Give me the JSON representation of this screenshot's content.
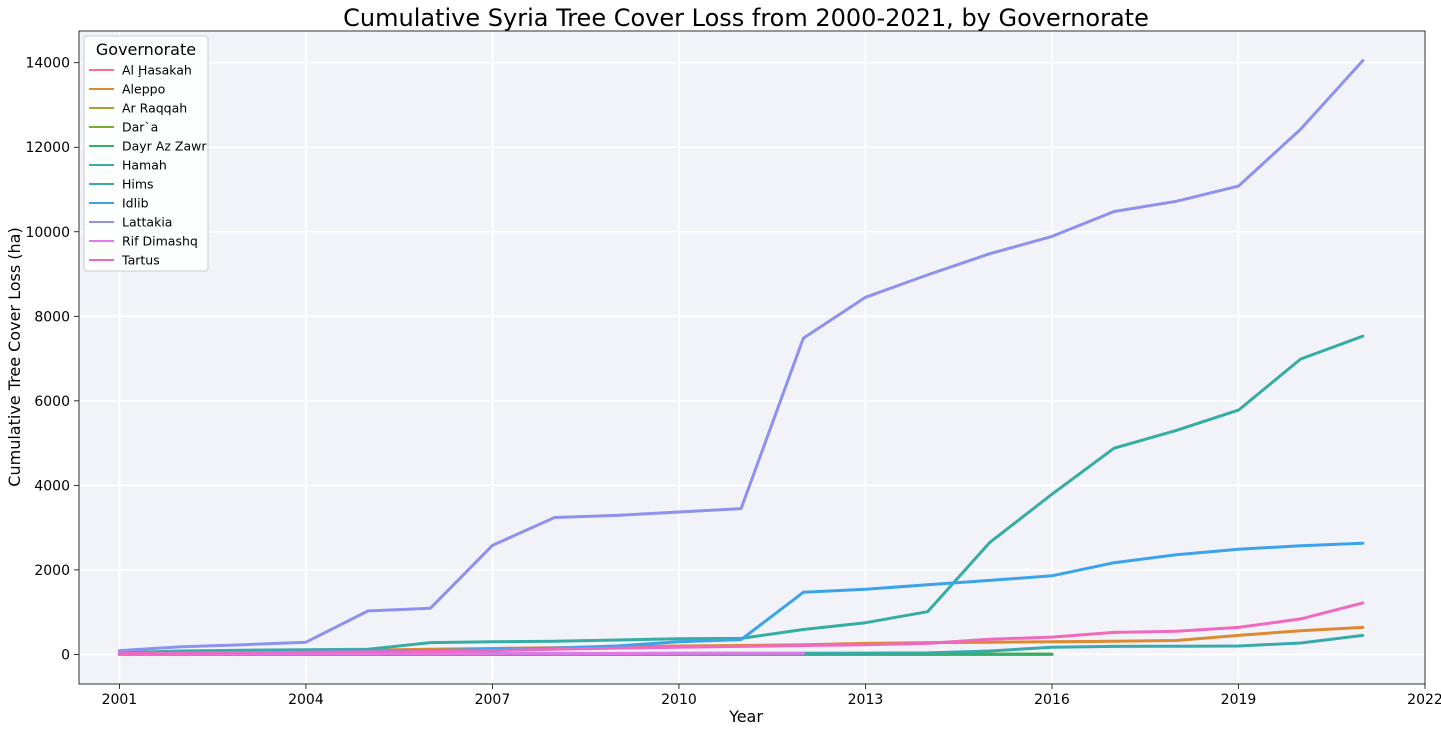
{
  "chart_data": {
    "type": "line",
    "title": "Cumulative Syria Tree Cover Loss from 2000-2021, by Governorate",
    "xlabel": "Year",
    "ylabel": "Cumulative Tree Cover Loss (ha)",
    "xlim": [
      2000.35,
      2022
    ],
    "ylim": [
      -700,
      14750
    ],
    "xticks": [
      2001,
      2004,
      2007,
      2010,
      2013,
      2016,
      2019,
      2022
    ],
    "yticks": [
      0,
      2000,
      4000,
      6000,
      8000,
      10000,
      12000,
      14000
    ],
    "grid": true,
    "legend_title": "Governorate",
    "legend_position": "top-left",
    "series": [
      {
        "name": "Al Ḩasakah",
        "color": "#f77189",
        "x": [
          2001,
          2002,
          2003,
          2004,
          2005,
          2006,
          2007,
          2008,
          2009,
          2010,
          2011,
          2012
        ],
        "y": [
          2,
          3,
          4,
          5,
          6,
          7,
          8,
          9,
          10,
          11,
          12,
          13
        ]
      },
      {
        "name": "Aleppo",
        "color": "#dc8932",
        "x": [
          2001,
          2002,
          2003,
          2004,
          2005,
          2006,
          2007,
          2008,
          2009,
          2010,
          2011,
          2012,
          2013,
          2014,
          2015,
          2016,
          2017,
          2018,
          2019,
          2020,
          2021
        ],
        "y": [
          20,
          40,
          60,
          80,
          100,
          120,
          140,
          160,
          180,
          200,
          210,
          230,
          260,
          280,
          290,
          300,
          310,
          330,
          450,
          560,
          640
        ]
      },
      {
        "name": "Ar Raqqah",
        "color": "#ae9d31",
        "x": [
          2001,
          2002,
          2003,
          2004,
          2005,
          2006,
          2007,
          2008,
          2009,
          2010,
          2011,
          2012,
          2013,
          2014,
          2015,
          2016
        ],
        "y": [
          0,
          0,
          0,
          0,
          1,
          1,
          1,
          1,
          1,
          2,
          2,
          2,
          2,
          2,
          2,
          2
        ]
      },
      {
        "name": "Dar`a",
        "color": "#77ab31",
        "x": [
          2001,
          2002,
          2003,
          2004,
          2005,
          2006,
          2007,
          2008,
          2009,
          2010,
          2011,
          2012,
          2013,
          2014,
          2015,
          2016
        ],
        "y": [
          0,
          0,
          1,
          1,
          1,
          2,
          2,
          2,
          3,
          3,
          3,
          4,
          4,
          4,
          5,
          5
        ]
      },
      {
        "name": "Dayr Az Zawr",
        "color": "#33b166",
        "x": [
          2001,
          2002,
          2003,
          2004,
          2005,
          2006,
          2007,
          2008,
          2009,
          2010,
          2011,
          2012,
          2013,
          2014,
          2015,
          2016
        ],
        "y": [
          0,
          0,
          0,
          1,
          1,
          1,
          1,
          2,
          2,
          2,
          3,
          3,
          3,
          3,
          4,
          4
        ]
      },
      {
        "name": "Hamah",
        "color": "#36ada4",
        "x": [
          2001,
          2002,
          2003,
          2004,
          2005,
          2006,
          2007,
          2008,
          2009,
          2010,
          2011,
          2012,
          2013,
          2014,
          2015,
          2016,
          2017,
          2018,
          2019,
          2020,
          2021
        ],
        "y": [
          40,
          80,
          100,
          110,
          120,
          280,
          300,
          310,
          340,
          370,
          380,
          590,
          750,
          1010,
          2650,
          3790,
          4880,
          5300,
          5780,
          6990,
          7530
        ]
      },
      {
        "name": "Hims",
        "color": "#38aaac",
        "x": [
          2001,
          2002,
          2003,
          2004,
          2005,
          2006,
          2007,
          2008,
          2009,
          2010,
          2011,
          2012,
          2013,
          2014,
          2015,
          2016,
          2017,
          2018,
          2019,
          2020,
          2021
        ],
        "y": [
          5,
          10,
          12,
          15,
          18,
          20,
          22,
          24,
          25,
          26,
          27,
          28,
          30,
          35,
          80,
          170,
          190,
          195,
          200,
          270,
          450
        ]
      },
      {
        "name": "Idlib",
        "color": "#3ba3ec",
        "x": [
          2001,
          2002,
          2003,
          2004,
          2005,
          2006,
          2007,
          2008,
          2009,
          2010,
          2011,
          2012,
          2013,
          2014,
          2015,
          2016,
          2017,
          2018,
          2019,
          2020,
          2021
        ],
        "y": [
          30,
          40,
          50,
          60,
          70,
          90,
          120,
          150,
          200,
          300,
          350,
          1470,
          1540,
          1650,
          1750,
          1860,
          2170,
          2360,
          2490,
          2570,
          2630
        ]
      },
      {
        "name": "Lattakia",
        "color": "#8e91ee",
        "x": [
          2001,
          2002,
          2003,
          2004,
          2005,
          2006,
          2007,
          2008,
          2009,
          2010,
          2011,
          2012,
          2013,
          2014,
          2015,
          2016,
          2017,
          2018,
          2019,
          2020,
          2021
        ],
        "y": [
          90,
          180,
          230,
          290,
          1030,
          1090,
          2580,
          3240,
          3290,
          3370,
          3450,
          7480,
          8450,
          8980,
          9480,
          9890,
          10480,
          10720,
          11080,
          12430,
          14050
        ]
      },
      {
        "name": "Rif Dimashq",
        "color": "#e17ae8",
        "x": [
          2001,
          2002,
          2003,
          2004,
          2005,
          2006,
          2007,
          2008,
          2009,
          2010,
          2011,
          2012
        ],
        "y": [
          5,
          8,
          10,
          12,
          14,
          16,
          18,
          20,
          22,
          24,
          26,
          28
        ]
      },
      {
        "name": "Tartus",
        "color": "#f168c1",
        "x": [
          2001,
          2002,
          2003,
          2004,
          2005,
          2006,
          2007,
          2008,
          2009,
          2010,
          2011,
          2012,
          2013,
          2014,
          2015,
          2016,
          2017,
          2018,
          2019,
          2020,
          2021
        ],
        "y": [
          20,
          30,
          40,
          50,
          60,
          70,
          90,
          120,
          150,
          170,
          190,
          210,
          230,
          260,
          360,
          410,
          520,
          550,
          640,
          840,
          1220
        ]
      }
    ]
  }
}
